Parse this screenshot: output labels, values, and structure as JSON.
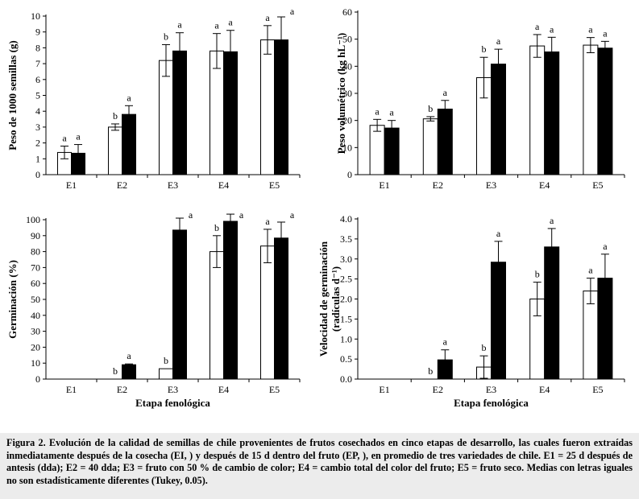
{
  "figure_caption": "Figura 2. Evolución de la calidad de semillas de chile provenientes de frutos cosechados en cinco etapas de desarrollo, las cuales fueron extraídas inmediatamente después de la cosecha (EI, ) y después de 15 d dentro del fruto (EP, ), en promedio de tres variedades de chile. E1 = 25 d después de antesis (dda); E2 = 40 dda; E3 = fruto con 50 % de cambio de color; E4 = cambio total del color del fruto; E5 = fruto seco. Medias con letras iguales no son estadísticamente diferentes (Tukey, 0.05).",
  "colors": {
    "ei_fill": "#ffffff",
    "ep_fill": "#000000",
    "stroke": "#000000"
  },
  "chart_data": [
    {
      "id": "peso1000",
      "type": "bar",
      "title": "",
      "categories": [
        "E1",
        "E2",
        "E3",
        "E4",
        "E5"
      ],
      "xlabel": "",
      "ylabel": "Peso de 1000 semillas (g)",
      "ylim": [
        0,
        10
      ],
      "yticks": [
        0,
        1,
        2,
        3,
        4,
        5,
        6,
        7,
        8,
        9,
        10
      ],
      "ytick_labels": [
        "0",
        "1",
        "2",
        "3",
        "4",
        "5",
        "6",
        "7",
        "8",
        "9",
        "10"
      ],
      "series": [
        {
          "name": "EI",
          "values": [
            1.4,
            3.0,
            7.2,
            7.8,
            8.5
          ],
          "errors": [
            0.4,
            0.2,
            1.0,
            1.1,
            0.9
          ],
          "letters": [
            "a",
            "b",
            "b",
            "a",
            "a"
          ]
        },
        {
          "name": "EP",
          "values": [
            1.35,
            3.8,
            7.8,
            7.75,
            8.5
          ],
          "errors": [
            0.55,
            0.55,
            1.15,
            1.35,
            1.45
          ],
          "letters": [
            "a",
            "a",
            "a",
            "a",
            "a"
          ]
        }
      ]
    },
    {
      "id": "pesovol",
      "type": "bar",
      "title": "",
      "categories": [
        "E1",
        "E2",
        "E3",
        "E4",
        "E5"
      ],
      "xlabel": "",
      "ylabel": "Peso volumétrico (kg hL⁻¹)",
      "ylim": [
        0,
        60
      ],
      "yticks": [
        0,
        10,
        20,
        30,
        40,
        50,
        60
      ],
      "ytick_labels": [
        "0",
        "10",
        "20",
        "30",
        "40",
        "50",
        "60"
      ],
      "series": [
        {
          "name": "EI",
          "values": [
            18.2,
            20.6,
            35.8,
            47.5,
            47.8
          ],
          "errors": [
            2.2,
            0.8,
            7.5,
            4.2,
            2.8
          ],
          "letters": [
            "a",
            "b",
            "b",
            "a",
            "a"
          ]
        },
        {
          "name": "EP",
          "values": [
            17.2,
            24.2,
            40.8,
            45.3,
            46.7
          ],
          "errors": [
            2.8,
            3.2,
            5.5,
            5.4,
            2.5
          ],
          "letters": [
            "a",
            "a",
            "a",
            "a",
            "a"
          ]
        }
      ]
    },
    {
      "id": "germinacion",
      "type": "bar",
      "title": "",
      "categories": [
        "E1",
        "E2",
        "E3",
        "E4",
        "E5"
      ],
      "xlabel": "Etapa fenológica",
      "ylabel": "Germinación (%)",
      "ylim": [
        0,
        100
      ],
      "yticks": [
        0,
        10,
        20,
        30,
        40,
        50,
        60,
        70,
        80,
        90,
        100
      ],
      "ytick_labels": [
        "0",
        "10",
        "20",
        "30",
        "40",
        "50",
        "60",
        "70",
        "80",
        "90",
        "100"
      ],
      "series": [
        {
          "name": "EI",
          "values": [
            0,
            0,
            6.5,
            80,
            83.5
          ],
          "errors": [
            0,
            0,
            0,
            10,
            10.5
          ],
          "letters": [
            "",
            "b",
            "b",
            "b",
            "a"
          ]
        },
        {
          "name": "EP",
          "values": [
            0,
            9,
            93.5,
            99,
            88.5
          ],
          "errors": [
            0,
            0.5,
            7.5,
            4.5,
            10
          ],
          "letters": [
            "",
            "a",
            "a",
            "a",
            "a"
          ]
        }
      ]
    },
    {
      "id": "velocidad",
      "type": "bar",
      "title": "",
      "categories": [
        "E1",
        "E2",
        "E3",
        "E4",
        "E5"
      ],
      "xlabel": "Etapa fenológica",
      "ylabel": "Velocidad de germinación (radículas d⁻¹)",
      "ylabel_lines": [
        "Velocidad de germinación",
        "(radículas d⁻¹)"
      ],
      "ylim": [
        0,
        4
      ],
      "yticks": [
        0,
        0.5,
        1,
        1.5,
        2,
        2.5,
        3,
        3.5,
        4
      ],
      "ytick_labels": [
        "0.0",
        "0.5",
        "1.0",
        "1.5",
        "2.0",
        "2.5",
        "3.0",
        "3.5",
        "4.0"
      ],
      "series": [
        {
          "name": "EI",
          "values": [
            0,
            0,
            0.3,
            2.0,
            2.2
          ],
          "errors": [
            0,
            0,
            0.28,
            0.42,
            0.32
          ],
          "letters": [
            "",
            "b",
            "b",
            "b",
            "a"
          ]
        },
        {
          "name": "EP",
          "values": [
            0,
            0.48,
            2.92,
            3.3,
            2.52
          ],
          "errors": [
            0,
            0.25,
            0.52,
            0.46,
            0.6
          ],
          "letters": [
            "",
            "a",
            "a",
            "a",
            "a"
          ]
        }
      ]
    }
  ]
}
